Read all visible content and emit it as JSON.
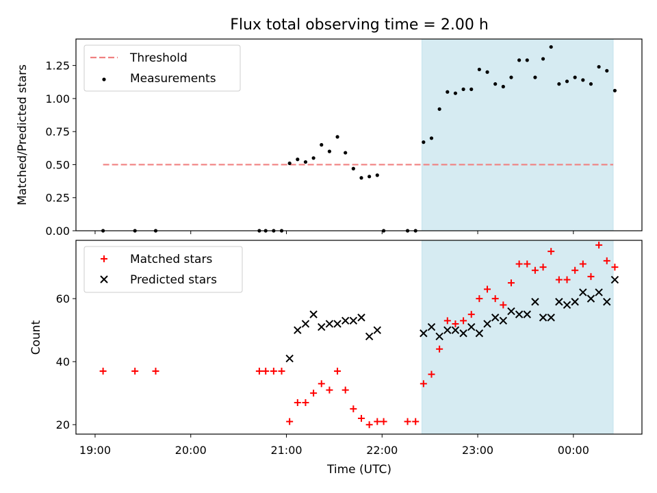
{
  "figure": {
    "title": "Flux total observing time = 2.00 h",
    "xlabel": "Time (UTC)",
    "x_ticks": [
      "19:00",
      "20:00",
      "21:00",
      "22:00",
      "23:00",
      "00:00"
    ],
    "x_tick_values": [
      "19:00",
      "20:00",
      "21:00",
      "22:00",
      "23:00",
      "00:00"
    ],
    "x_range": [
      "18:48",
      "00:43"
    ],
    "shaded_span": [
      "22:25",
      "00:25"
    ],
    "shade_color": "#add8e6"
  },
  "chart_data": [
    {
      "type": "scatter",
      "ylabel": "Matched/Predicted stars",
      "ylim": [
        0,
        1.45
      ],
      "y_ticks": [
        "0.00",
        "0.25",
        "0.50",
        "0.75",
        "1.00",
        "1.25"
      ],
      "y_tick_values": [
        0,
        0.25,
        0.5,
        0.75,
        1.0,
        1.25
      ],
      "legend_position": "upper-left",
      "series": [
        {
          "name": "Threshold",
          "kind": "dashed-line",
          "color": "#f08080",
          "x": [
            "19:05",
            "00:25"
          ],
          "y": [
            0.5,
            0.5
          ]
        },
        {
          "name": "Measurements",
          "kind": "dot",
          "color": "#000000",
          "x": [
            "19:05",
            "19:25",
            "19:38",
            "20:43",
            "20:47",
            "20:52",
            "20:57",
            "21:02",
            "21:07",
            "21:12",
            "21:17",
            "21:22",
            "21:27",
            "21:32",
            "21:37",
            "21:42",
            "21:47",
            "21:52",
            "21:57",
            "22:01",
            "22:16",
            "22:21",
            "22:26",
            "22:31",
            "22:36",
            "22:41",
            "22:46",
            "22:51",
            "22:56",
            "23:01",
            "23:06",
            "23:11",
            "23:16",
            "23:21",
            "23:26",
            "23:31",
            "23:36",
            "23:41",
            "23:46",
            "23:51",
            "23:56",
            "00:01",
            "00:06",
            "00:11",
            "00:16",
            "00:21",
            "00:26"
          ],
          "y": [
            0,
            0,
            0,
            0,
            0,
            0,
            0,
            0.51,
            0.54,
            0.52,
            0.55,
            0.65,
            0.6,
            0.71,
            0.59,
            0.47,
            0.4,
            0.41,
            0.42,
            0,
            0,
            0,
            0.67,
            0.7,
            0.92,
            1.05,
            1.04,
            1.07,
            1.07,
            1.22,
            1.2,
            1.11,
            1.09,
            1.16,
            1.29,
            1.29,
            1.16,
            1.3,
            1.39,
            1.11,
            1.13,
            1.16,
            1.14,
            1.11,
            1.24,
            1.21,
            1.06
          ]
        }
      ]
    },
    {
      "type": "scatter",
      "ylabel": "Count",
      "ylim": [
        17,
        78.5
      ],
      "y_ticks": [
        "20",
        "40",
        "60"
      ],
      "y_tick_values": [
        20,
        40,
        60
      ],
      "legend_position": "upper-left",
      "series": [
        {
          "name": "Matched stars",
          "kind": "plus",
          "color": "#ff0000",
          "x": [
            "19:05",
            "19:25",
            "19:38",
            "20:43",
            "20:47",
            "20:52",
            "20:57",
            "21:02",
            "21:07",
            "21:12",
            "21:17",
            "21:22",
            "21:27",
            "21:32",
            "21:37",
            "21:42",
            "21:47",
            "21:52",
            "21:57",
            "22:01",
            "22:16",
            "22:21",
            "22:26",
            "22:31",
            "22:36",
            "22:41",
            "22:46",
            "22:51",
            "22:56",
            "23:01",
            "23:06",
            "23:11",
            "23:16",
            "23:21",
            "23:26",
            "23:31",
            "23:36",
            "23:41",
            "23:46",
            "23:51",
            "23:56",
            "00:01",
            "00:06",
            "00:11",
            "00:16",
            "00:21",
            "00:26"
          ],
          "y": [
            37,
            37,
            37,
            37,
            37,
            37,
            37,
            21,
            27,
            27,
            30,
            33,
            31,
            37,
            31,
            25,
            22,
            20,
            21,
            21,
            21,
            21,
            33,
            36,
            44,
            53,
            52,
            53,
            55,
            60,
            63,
            60,
            58,
            65,
            71,
            71,
            69,
            70,
            75,
            66,
            66,
            69,
            71,
            67,
            77,
            72,
            70
          ]
        },
        {
          "name": "Predicted stars",
          "kind": "cross",
          "color": "#000000",
          "x": [
            "21:02",
            "21:07",
            "21:12",
            "21:17",
            "21:22",
            "21:27",
            "21:32",
            "21:37",
            "21:42",
            "21:47",
            "21:52",
            "21:57",
            "22:26",
            "22:31",
            "22:36",
            "22:41",
            "22:46",
            "22:51",
            "22:56",
            "23:01",
            "23:06",
            "23:11",
            "23:16",
            "23:21",
            "23:26",
            "23:31",
            "23:36",
            "23:41",
            "23:46",
            "23:51",
            "23:56",
            "00:01",
            "00:06",
            "00:11",
            "00:16",
            "00:21",
            "00:26"
          ],
          "y": [
            41,
            50,
            52,
            55,
            51,
            52,
            52,
            53,
            53,
            54,
            48,
            50,
            49,
            51,
            48,
            50,
            50,
            49,
            51,
            49,
            52,
            54,
            53,
            56,
            55,
            55,
            59,
            54,
            54,
            59,
            58,
            59,
            62,
            60,
            62,
            59,
            66
          ]
        }
      ]
    }
  ]
}
